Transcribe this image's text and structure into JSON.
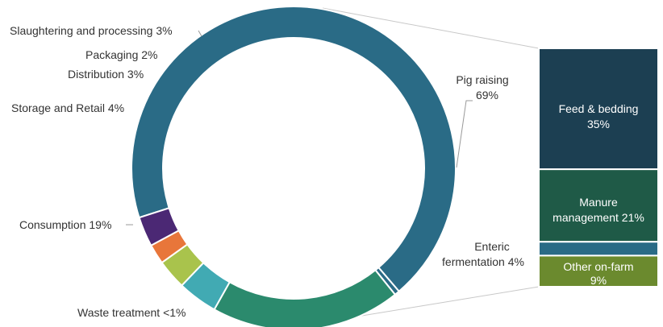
{
  "chart_data": {
    "type": "pie",
    "style": "donut-with-breakdown-bar",
    "title": "",
    "slices": [
      {
        "label": "Pig raising",
        "value": 69,
        "display": "69%",
        "color": "#2a6b86"
      },
      {
        "label": "Waste treatment",
        "value": 0.5,
        "display": "<1%",
        "color": "#2a6b86"
      },
      {
        "label": "Consumption",
        "value": 19,
        "display": "19%",
        "color": "#2b8a6d"
      },
      {
        "label": "Storage and Retail",
        "value": 4,
        "display": "4%",
        "color": "#41aab3"
      },
      {
        "label": "Distribution",
        "value": 3,
        "display": "3%",
        "color": "#a9c34c"
      },
      {
        "label": "Packaging",
        "value": 2,
        "display": "2%",
        "color": "#e8763a"
      },
      {
        "label": "Slaughtering and processing",
        "value": 3,
        "display": "3%",
        "color": "#4b2874"
      }
    ],
    "breakdown": {
      "parent": "Pig raising",
      "segments": [
        {
          "label": "Feed & bedding",
          "value": 35,
          "display": "35%",
          "color": "#1c3f52"
        },
        {
          "label": "Manure management",
          "value": 21,
          "display": "21%",
          "color": "#1f5a47"
        },
        {
          "label": "Enteric fermentation",
          "value": 4,
          "display": "4%",
          "color": "#2a6b86"
        },
        {
          "label": "Other on-farm",
          "value": 9,
          "display": "9%",
          "color": "#6b8a2e"
        }
      ]
    },
    "text": {
      "slaughtering": "Slaughtering and processing 3%",
      "packaging": "Packaging 2%",
      "distribution": "Distribution 3%",
      "storage": "Storage and Retail 4%",
      "consumption": "Consumption 19%",
      "waste": "Waste treatment <1%",
      "pig_line1": "Pig raising",
      "pig_line2": "69%",
      "enteric_line1": "Enteric",
      "enteric_line2": "fermentation 4%",
      "feed_line1": "Feed & bedding",
      "feed_line2": "35%",
      "manure_line1": "Manure",
      "manure_line2": "management 21%",
      "other_line1": "Other on-farm",
      "other_line2": "9%"
    }
  }
}
